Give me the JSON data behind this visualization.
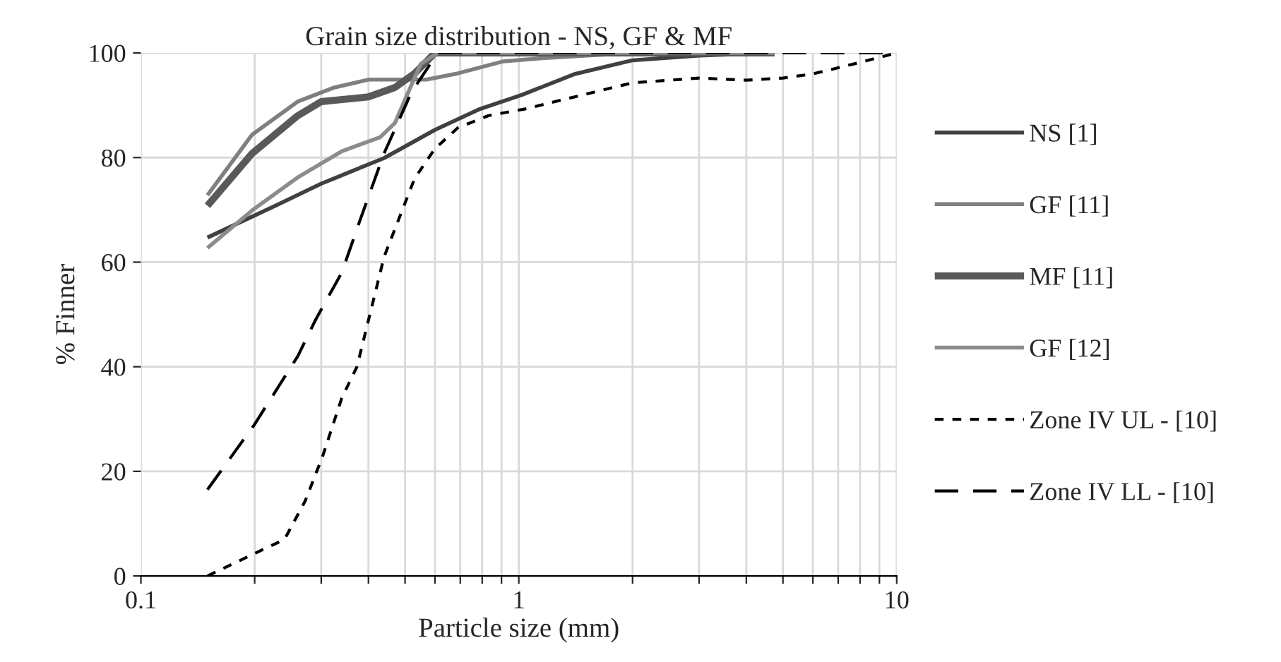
{
  "chart_data": {
    "type": "line",
    "title": "Grain size distribution - NS, GF & MF",
    "xlabel": "Particle size (mm)",
    "ylabel": "% Finner",
    "log": "x",
    "xlim": [
      0.1,
      10
    ],
    "ylim": [
      0,
      100
    ],
    "xticks": [
      0.1,
      {
        "value": 0.2,
        "label": null
      },
      {
        "value": 0.3,
        "label": null
      },
      {
        "value": 0.4,
        "label": null
      },
      {
        "value": 0.5,
        "label": null
      },
      {
        "value": 0.6,
        "label": null
      },
      {
        "value": 0.7,
        "label": null
      },
      {
        "value": 0.8,
        "label": null
      },
      {
        "value": 0.9,
        "label": null
      },
      1,
      {
        "value": 2,
        "label": null
      },
      {
        "value": 3,
        "label": null
      },
      {
        "value": 4,
        "label": null
      },
      {
        "value": 5,
        "label": null
      },
      {
        "value": 6,
        "label": null
      },
      {
        "value": 7,
        "label": null
      },
      {
        "value": 8,
        "label": null
      },
      {
        "value": 9,
        "label": null
      },
      10
    ],
    "yticks": [
      0,
      20,
      40,
      60,
      80,
      100
    ],
    "grid": true,
    "legend": "right",
    "marker": "none",
    "series": [
      {
        "name": "NS [1]",
        "color": "#404040",
        "line_style": "solid",
        "x": [
          0.15,
          0.23,
          0.3,
          0.44,
          0.6,
          0.79,
          1.02,
          1.41,
          2,
          3,
          4.75
        ],
        "values": [
          64.7,
          71,
          75,
          79.9,
          85.3,
          89.3,
          92,
          96,
          98.6,
          99.5,
          100
        ]
      },
      {
        "name": "GF [11]",
        "color": "#7f7f7f",
        "line_style": "solid",
        "x": [
          0.15,
          0.197,
          0.26,
          0.325,
          0.4,
          0.49,
          0.57,
          0.69,
          0.91,
          1.15,
          2,
          4.75
        ],
        "values": [
          72.8,
          84.4,
          90.7,
          93.4,
          94.9,
          94.9,
          94.9,
          96.1,
          98.4,
          99,
          100,
          100
        ]
      },
      {
        "name": "MF [11]",
        "color": "#595959",
        "line_style": "solid",
        "x": [
          0.15,
          0.197,
          0.26,
          0.3,
          0.4,
          0.47,
          0.53,
          0.6,
          1,
          4.75
        ],
        "values": [
          70.8,
          80.8,
          88,
          90.7,
          91.6,
          93.4,
          96.1,
          100,
          100,
          100
        ]
      },
      {
        "name": "GF [12]",
        "color": "#8c8c8c",
        "line_style": "solid",
        "x": [
          0.15,
          0.197,
          0.26,
          0.34,
          0.43,
          0.47,
          0.51,
          0.55,
          0.61,
          1.04,
          4.75
        ],
        "values": [
          62.7,
          69.9,
          76.2,
          81.2,
          83.9,
          86.6,
          92.5,
          97.9,
          100,
          100,
          100
        ]
      },
      {
        "name": "Zone IV UL - [10]",
        "color": "#000000",
        "line_style": "dotted",
        "x": [
          0.15,
          0.2,
          0.24,
          0.272,
          0.303,
          0.34,
          0.373,
          0.41,
          0.44,
          0.53,
          0.6,
          0.69,
          0.83,
          1.04,
          2,
          3,
          4,
          5,
          6,
          7.8,
          10
        ],
        "values": [
          0,
          4.3,
          7,
          14.3,
          23,
          34,
          40,
          52,
          61,
          76,
          81.7,
          85.7,
          88,
          89.3,
          94.3,
          95.2,
          94.8,
          95.2,
          96,
          98,
          100
        ]
      },
      {
        "name": "Zone IV LL - [10]",
        "color": "#000000",
        "line_style": "dashed",
        "x": [
          0.15,
          0.2,
          0.26,
          0.29,
          0.34,
          0.38,
          0.44,
          0.52,
          0.61,
          10
        ],
        "values": [
          16.5,
          29,
          42,
          49,
          58,
          68,
          80.8,
          92.5,
          100,
          100
        ]
      }
    ]
  }
}
